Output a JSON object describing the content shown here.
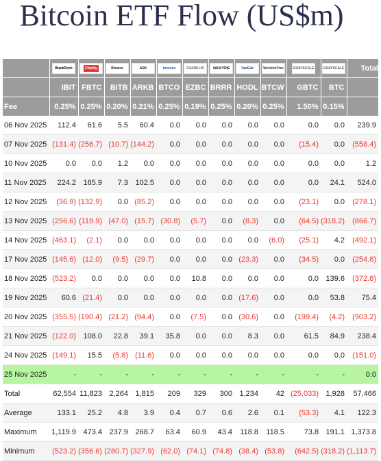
{
  "title": "Bitcoin ETF Flow (US$m)",
  "colors": {
    "header_bg": "#9c9c9c",
    "negative": "#e53935",
    "highlight": "#b7f5a0",
    "title": "#2b2f4e"
  },
  "logos": [
    {
      "name": "blackrock-logo",
      "text": "BlackRock",
      "color": "#000000",
      "bg": "#ffffff"
    },
    {
      "name": "fidelity-logo",
      "text": "Fidelity",
      "color": "#ffffff",
      "bg": "#ffffff"
    },
    {
      "name": "bitwise-logo",
      "text": "Bitwise",
      "color": "#222222",
      "bg": "#ffffff"
    },
    {
      "name": "ark-logo",
      "text": "ARK",
      "color": "#222222",
      "bg": "#ffffff"
    },
    {
      "name": "invesco-logo",
      "text": "Invesco",
      "color": "#1e5aa8",
      "bg": "#ffffff"
    },
    {
      "name": "franklin-logo",
      "text": "FRANKLIN",
      "color": "#666666",
      "bg": "#ffffff"
    },
    {
      "name": "valkyrie-logo",
      "text": "VALKYRIE",
      "color": "#000000",
      "bg": "#ffffff"
    },
    {
      "name": "vaneck-logo",
      "text": "VanEck",
      "color": "#1e3a8a",
      "bg": "#ffffff"
    },
    {
      "name": "wisdomtree-logo",
      "text": "WisdomTree",
      "color": "#2b2f4e",
      "bg": "#ffffff"
    },
    {
      "name": "grayscale-logo",
      "text": "GRAYSCALE",
      "color": "#555555",
      "bg": "#ffffff"
    },
    {
      "name": "grayscale-mini-logo",
      "text": "GRAYSCALE",
      "color": "#555555",
      "bg": "#ffffff"
    }
  ],
  "chart_data": {
    "type": "table",
    "title": "Bitcoin ETF Flow (US$m)",
    "header_total_label": "Total",
    "columns": [
      "IBIT",
      "FBTC",
      "BITB",
      "ARKB",
      "BTCO",
      "EZBC",
      "BRRR",
      "HODL",
      "BTCW",
      "GBTC",
      "BTC"
    ],
    "fee_label": "Fee",
    "fees": [
      "0.25%",
      "0.25%",
      "0.20%",
      "0.21%",
      "0.25%",
      "0.19%",
      "0.25%",
      "0.20%",
      "0.25%",
      "1.50%",
      "0.15%"
    ],
    "rows": [
      {
        "date": "06 Nov 2025",
        "values": [
          "112.4",
          "61.6",
          "5.5",
          "60.4",
          "0.0",
          "0.0",
          "0.0",
          "0.0",
          "0.0",
          "0.0",
          "0.0"
        ],
        "total": "239.9"
      },
      {
        "date": "07 Nov 2025",
        "values": [
          "(131.4)",
          "(256.7)",
          "(10.7)",
          "(144.2)",
          "0.0",
          "0.0",
          "0.0",
          "0.0",
          "0.0",
          "(15.4)",
          "0.0"
        ],
        "total": "(558.4)"
      },
      {
        "date": "10 Nov 2025",
        "values": [
          "0.0",
          "0.0",
          "1.2",
          "0.0",
          "0.0",
          "0.0",
          "0.0",
          "0.0",
          "0.0",
          "0.0",
          "0.0"
        ],
        "total": "1.2"
      },
      {
        "date": "11 Nov 2025",
        "values": [
          "224.2",
          "165.9",
          "7.3",
          "102.5",
          "0.0",
          "0.0",
          "0.0",
          "0.0",
          "0.0",
          "0.0",
          "24.1"
        ],
        "total": "524.0"
      },
      {
        "date": "12 Nov 2025",
        "values": [
          "(36.9)",
          "(132.9)",
          "0.0",
          "(85.2)",
          "0.0",
          "0.0",
          "0.0",
          "0.0",
          "0.0",
          "(23.1)",
          "0.0"
        ],
        "total": "(278.1)"
      },
      {
        "date": "13 Nov 2025",
        "values": [
          "(256.6)",
          "(119.9)",
          "(47.0)",
          "(15.7)",
          "(30.8)",
          "(5.7)",
          "0.0",
          "(8.3)",
          "0.0",
          "(64.5)",
          "(318.2)"
        ],
        "total": "(866.7)"
      },
      {
        "date": "14 Nov 2025",
        "values": [
          "(463.1)",
          "(2.1)",
          "0.0",
          "0.0",
          "0.0",
          "0.0",
          "0.0",
          "0.0",
          "(6.0)",
          "(25.1)",
          "4.2"
        ],
        "total": "(492.1)"
      },
      {
        "date": "17 Nov 2025",
        "values": [
          "(145.6)",
          "(12.0)",
          "(9.5)",
          "(29.7)",
          "0.0",
          "0.0",
          "0.0",
          "(23.3)",
          "0.0",
          "(34.5)",
          "0.0"
        ],
        "total": "(254.6)"
      },
      {
        "date": "18 Nov 2025",
        "values": [
          "(523.2)",
          "0.0",
          "0.0",
          "0.0",
          "0.0",
          "10.8",
          "0.0",
          "0.0",
          "0.0",
          "0.0",
          "139.6"
        ],
        "total": "(372.8)"
      },
      {
        "date": "19 Nov 2025",
        "values": [
          "60.6",
          "(21.4)",
          "0.0",
          "0.0",
          "0.0",
          "0.0",
          "0.0",
          "(17.6)",
          "0.0",
          "0.0",
          "53.8"
        ],
        "total": "75.4"
      },
      {
        "date": "20 Nov 2025",
        "values": [
          "(355.5)",
          "(190.4)",
          "(21.2)",
          "(94.4)",
          "0.0",
          "(7.5)",
          "0.0",
          "(30.6)",
          "0.0",
          "(199.4)",
          "(4.2)"
        ],
        "total": "(903.2)"
      },
      {
        "date": "21 Nov 2025",
        "values": [
          "(122.0)",
          "108.0",
          "22.8",
          "39.1",
          "35.8",
          "0.0",
          "0.0",
          "8.3",
          "0.0",
          "61.5",
          "84.9"
        ],
        "total": "238.4"
      },
      {
        "date": "24 Nov 2025",
        "values": [
          "(149.1)",
          "15.5",
          "(5.8)",
          "(11.6)",
          "0.0",
          "0.0",
          "0.0",
          "0.0",
          "0.0",
          "0.0",
          "0.0"
        ],
        "total": "(151.0)"
      },
      {
        "date": "25 Nov 2025",
        "values": [
          "-",
          "-",
          "-",
          "-",
          "-",
          "-",
          "-",
          "-",
          "-",
          "-",
          "-"
        ],
        "total": "0.0",
        "highlight": true
      }
    ],
    "summary": [
      {
        "label": "Total",
        "values": [
          "62,554",
          "11,823",
          "2,264",
          "1,815",
          "209",
          "329",
          "300",
          "1,234",
          "42",
          "(25,033)",
          "1,928"
        ],
        "total": "57,466"
      },
      {
        "label": "Average",
        "values": [
          "133.1",
          "25.2",
          "4.8",
          "3.9",
          "0.4",
          "0.7",
          "0.6",
          "2.6",
          "0.1",
          "(53.3)",
          "4.1"
        ],
        "total": "122.3"
      },
      {
        "label": "Maximum",
        "values": [
          "1,119.9",
          "473.4",
          "237.9",
          "268.7",
          "63.4",
          "60.9",
          "43.4",
          "118.8",
          "118.5",
          "73.8",
          "191.1"
        ],
        "total": "1,373.8"
      },
      {
        "label": "Minimum",
        "values": [
          "(523.2)",
          "(356.6)",
          "(280.7)",
          "(327.9)",
          "(62.0)",
          "(74.1)",
          "(74.8)",
          "(38.4)",
          "(53.8)",
          "(642.5)",
          "(318.2)"
        ],
        "total": "(1,113.7)"
      }
    ]
  }
}
